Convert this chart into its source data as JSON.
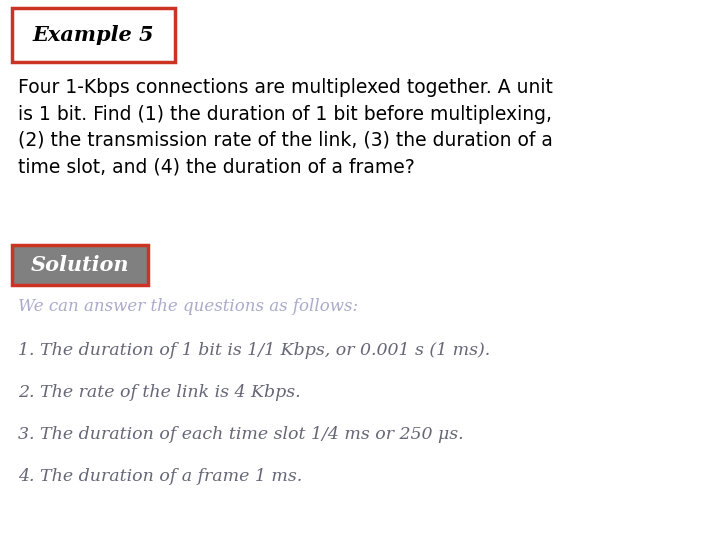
{
  "background_color": "#ffffff",
  "example_title": "Example 5",
  "example_title_fontsize": 15,
  "example_box_color": "#cc3322",
  "problem_text": "Four 1-Kbps connections are multiplexed together. A unit\nis 1 bit. Find (1) the duration of 1 bit before multiplexing,\n(2) the transmission rate of the link, (3) the duration of a\ntime slot, and (4) the duration of a frame?",
  "problem_fontsize": 13.5,
  "problem_color": "#000000",
  "solution_label": "Solution",
  "solution_label_fontsize": 15,
  "solution_box_color": "#cc3322",
  "solution_bg_color": "#808080",
  "solution_text_color": "#ffffff",
  "subheading": "We can answer the questions as follows:",
  "subheading_fontsize": 12,
  "subheading_color": "#aaaacc",
  "answers": [
    "1. The duration of 1 bit is 1/1 Kbps, or 0.001 s (1 ms).",
    "2. The rate of the link is 4 Kbps.",
    "3. The duration of each time slot 1/4 ms or 250 μs.",
    "4. The duration of a frame 1 ms."
  ],
  "answers_fontsize": 12.5,
  "answers_color": "#666677"
}
